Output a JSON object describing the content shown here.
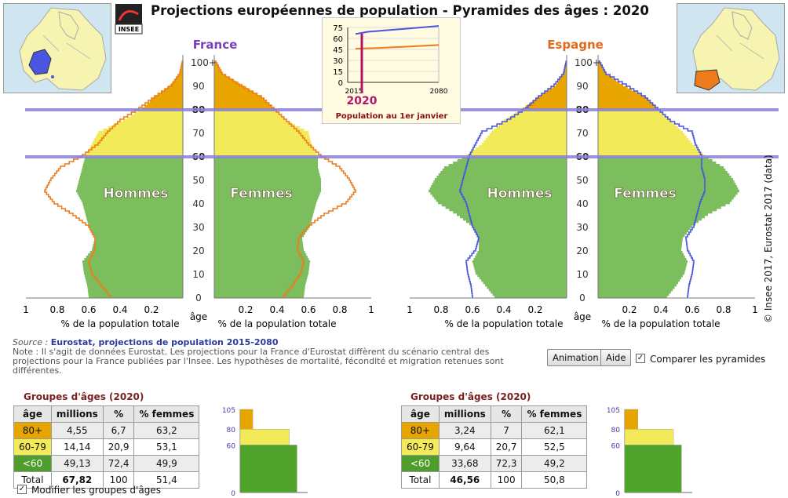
{
  "title": "Projections européennes de population - Pyramides des âges : 2020",
  "logo_text": "INSEE",
  "credit": "© Insee 2017, Eurostat 2017 (data)",
  "countries": {
    "left": {
      "name": "France",
      "color": "#7b3fb5"
    },
    "right": {
      "name": "Espagne",
      "color": "#e06a1b"
    }
  },
  "pyramid_labels": {
    "men": "Hommes",
    "women": "Femmes",
    "age_axis": "âge",
    "pct_axis": "% de la population totale",
    "age_ticks": [
      "0",
      "10",
      "20",
      "30",
      "40",
      "50",
      "60",
      "70",
      "80",
      "90",
      "100+"
    ],
    "pct_ticks_left": [
      "1",
      "0.8",
      "0.6",
      "0.4",
      "0.2"
    ],
    "pct_ticks_right": [
      "0.2",
      "0.4",
      "0.6",
      "0.8",
      "1"
    ],
    "highlight_ages": [
      "60",
      "80"
    ]
  },
  "inset": {
    "year": "2020",
    "caption": "Population au 1er janvier",
    "y_ticks": [
      "0",
      "15",
      "30",
      "45",
      "60",
      "75"
    ],
    "x_ticks": [
      "2015",
      "2080"
    ]
  },
  "source": {
    "label": "Source :",
    "value": "Eurostat, projections de population 2015-2080",
    "note": "Note : Il s'agit de données Eurostat. Les projections pour la France d'Eurostat diffèrent du scénario central des projections pour la France publiées par l'Insee. Les hypothèses de mortalité, fécondité et migration retenues sont différentes."
  },
  "controls": {
    "animation": "Animation",
    "help": "Aide",
    "compare": "Comparer les pyramides",
    "compare_checked": true,
    "modify_groups": "Modifier les groupes d'âges",
    "modify_checked": true
  },
  "groups_title": "Groupes d'âges (2020)",
  "table_headers": [
    "âge",
    "millions",
    "%",
    "% femmes"
  ],
  "groups": {
    "france": [
      {
        "age": "80+",
        "millions": "4,55",
        "pct": "6,7",
        "women": "63,2"
      },
      {
        "age": "60-79",
        "millions": "14,14",
        "pct": "20,9",
        "women": "53,1"
      },
      {
        "age": "<60",
        "millions": "49,13",
        "pct": "72,4",
        "women": "49,9"
      },
      {
        "age": "Total",
        "millions": "67,82",
        "pct": "100",
        "women": "51,4"
      }
    ],
    "spain": [
      {
        "age": "80+",
        "millions": "3,24",
        "pct": "7",
        "women": "62,1"
      },
      {
        "age": "60-79",
        "millions": "9,64",
        "pct": "20,7",
        "women": "52,5"
      },
      {
        "age": "<60",
        "millions": "33,68",
        "pct": "72,3",
        "women": "49,2"
      },
      {
        "age": "Total",
        "millions": "46,56",
        "pct": "100",
        "women": "50,8"
      }
    ]
  },
  "mini_ticks": [
    "105",
    "80",
    "60",
    "0"
  ],
  "colors": {
    "age80": "#e8a500",
    "age60": "#f3ea5a",
    "age0": "#7cbd5e",
    "france_line": "#ee7c1a",
    "spain_line": "#4a55e0",
    "highlight": "#8a7fd8"
  },
  "chart_data": {
    "type": "bar",
    "title": "Projections européennes de population - Pyramides des âges : 2020",
    "xlabel": "% de la population totale",
    "ylabel": "âge",
    "xlim": [
      0,
      1
    ],
    "ylim": [
      0,
      100
    ],
    "ages": [
      0,
      5,
      10,
      15,
      20,
      25,
      30,
      35,
      40,
      45,
      50,
      55,
      60,
      65,
      70,
      75,
      80,
      85,
      90,
      95,
      100
    ],
    "series": [
      {
        "name": "France - Hommes",
        "values": [
          0.6,
          0.61,
          0.63,
          0.64,
          0.58,
          0.56,
          0.6,
          0.62,
          0.64,
          0.68,
          0.66,
          0.64,
          0.62,
          0.58,
          0.54,
          0.38,
          0.26,
          0.18,
          0.08,
          0.02,
          0.003
        ]
      },
      {
        "name": "France - Femmes",
        "values": [
          0.57,
          0.58,
          0.6,
          0.61,
          0.57,
          0.56,
          0.61,
          0.63,
          0.65,
          0.68,
          0.68,
          0.66,
          0.66,
          0.62,
          0.6,
          0.46,
          0.38,
          0.3,
          0.18,
          0.05,
          0.01
        ]
      },
      {
        "name": "Espagne - Hommes",
        "values": [
          0.46,
          0.52,
          0.58,
          0.6,
          0.56,
          0.56,
          0.6,
          0.7,
          0.82,
          0.88,
          0.84,
          0.78,
          0.64,
          0.54,
          0.48,
          0.4,
          0.28,
          0.18,
          0.07,
          0.02,
          0.003
        ]
      },
      {
        "name": "Espagne - Femmes",
        "values": [
          0.44,
          0.5,
          0.55,
          0.57,
          0.53,
          0.54,
          0.6,
          0.7,
          0.84,
          0.9,
          0.86,
          0.8,
          0.68,
          0.6,
          0.54,
          0.46,
          0.38,
          0.3,
          0.16,
          0.05,
          0.01
        ]
      }
    ]
  }
}
